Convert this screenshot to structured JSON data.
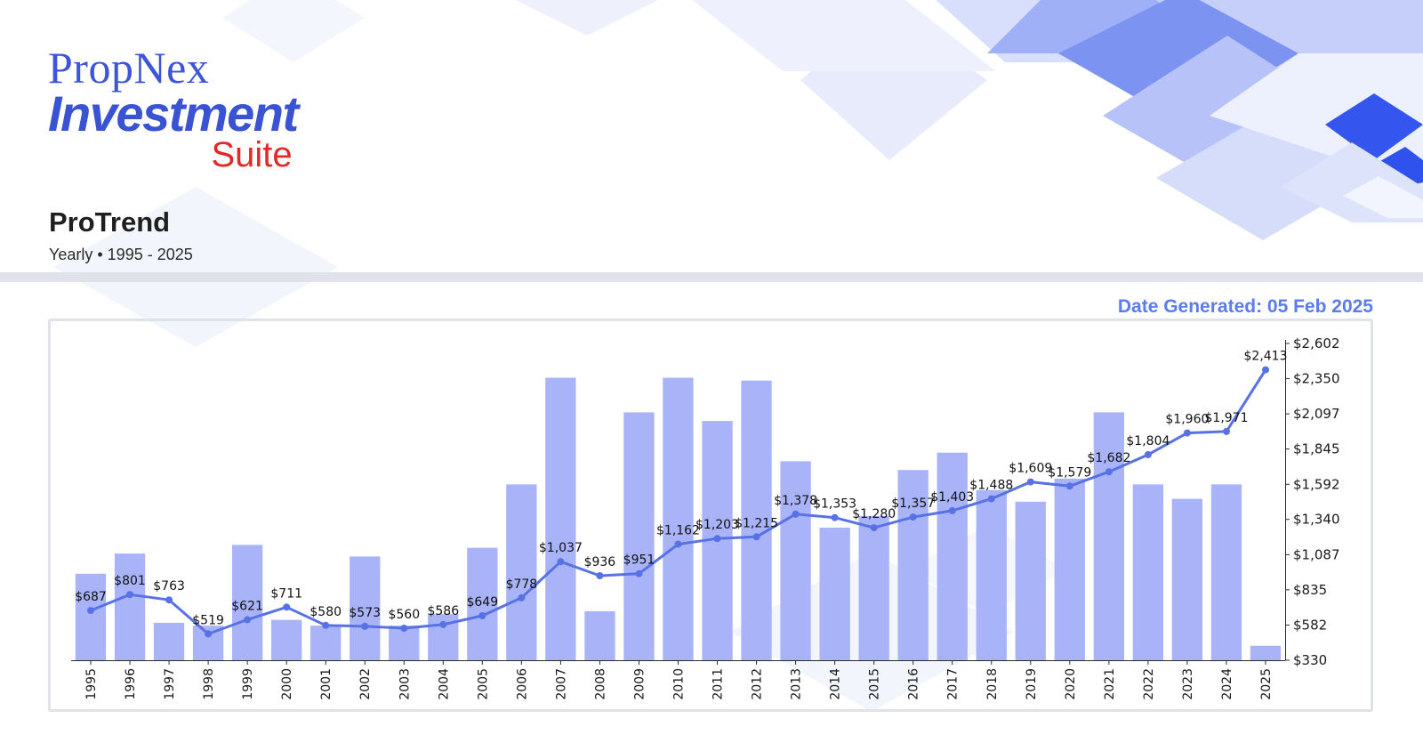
{
  "header": {
    "brand": "PropNex",
    "product_main": "Investment",
    "product_sub": "Suite"
  },
  "report": {
    "title": "ProTrend",
    "subtitle": "Yearly • 1995 - 2025",
    "date_generated": "Date Generated: 05 Feb 2025"
  },
  "colors": {
    "bar": "#a8b4f7",
    "line": "#5872e6",
    "brand_blue": "#3a53d3",
    "brand_red": "#e02a2a",
    "accent_text": "#5b7cf0"
  },
  "chart_data": {
    "type": "bar",
    "x": [
      1995,
      1996,
      1997,
      1998,
      1999,
      2000,
      2001,
      2002,
      2003,
      2004,
      2005,
      2006,
      2007,
      2008,
      2009,
      2010,
      2011,
      2012,
      2013,
      2014,
      2015,
      2016,
      2017,
      2018,
      2019,
      2020,
      2021,
      2022,
      2023,
      2024,
      2025
    ],
    "series": [
      {
        "chart_type": "bar",
        "axis": "secondary (unlabeled)",
        "values": [
          30,
          37,
          13,
          12,
          40,
          14,
          12,
          36,
          12,
          16,
          39,
          61,
          98,
          17,
          86,
          98,
          83,
          97,
          69,
          46,
          50,
          66,
          72,
          59,
          55,
          63,
          86,
          61,
          56,
          61,
          5
        ]
      },
      {
        "chart_type": "line",
        "axis": "right",
        "values": [
          687,
          801,
          763,
          519,
          621,
          711,
          580,
          573,
          560,
          586,
          649,
          778,
          1037,
          936,
          951,
          1162,
          1203,
          1215,
          1378,
          1353,
          1280,
          1357,
          1403,
          1488,
          1609,
          1579,
          1682,
          1804,
          1960,
          1971,
          2413
        ],
        "labels": [
          "$687",
          "$801",
          "$763",
          "$519",
          "$621",
          "$711",
          "$580",
          "$573",
          "$560",
          "$586",
          "$649",
          "$778",
          "$1,037",
          "$936",
          "$951",
          "$1,162",
          "$1,203",
          "$1,215",
          "$1,378",
          "$1,353",
          "$1,280",
          "$1,357",
          "$1,403",
          "$1,488",
          "$1,609",
          "$1,579",
          "$1,682",
          "$1,804",
          "$1,960",
          "$1,971",
          "$2,413"
        ]
      }
    ],
    "y_right": {
      "ticks": [
        330,
        582,
        835,
        1087,
        1340,
        1592,
        1845,
        2097,
        2350,
        2602
      ],
      "tick_labels": [
        "$330",
        "$582",
        "$835",
        "$1,087",
        "$1,340",
        "$1,592",
        "$1,845",
        "$2,097",
        "$2,350",
        "$2,602"
      ],
      "ylim": [
        330,
        2602
      ]
    },
    "bar_ylim": [
      0,
      100
    ],
    "x_tick_rotation": "vertical",
    "grid": false,
    "legend": "none"
  }
}
